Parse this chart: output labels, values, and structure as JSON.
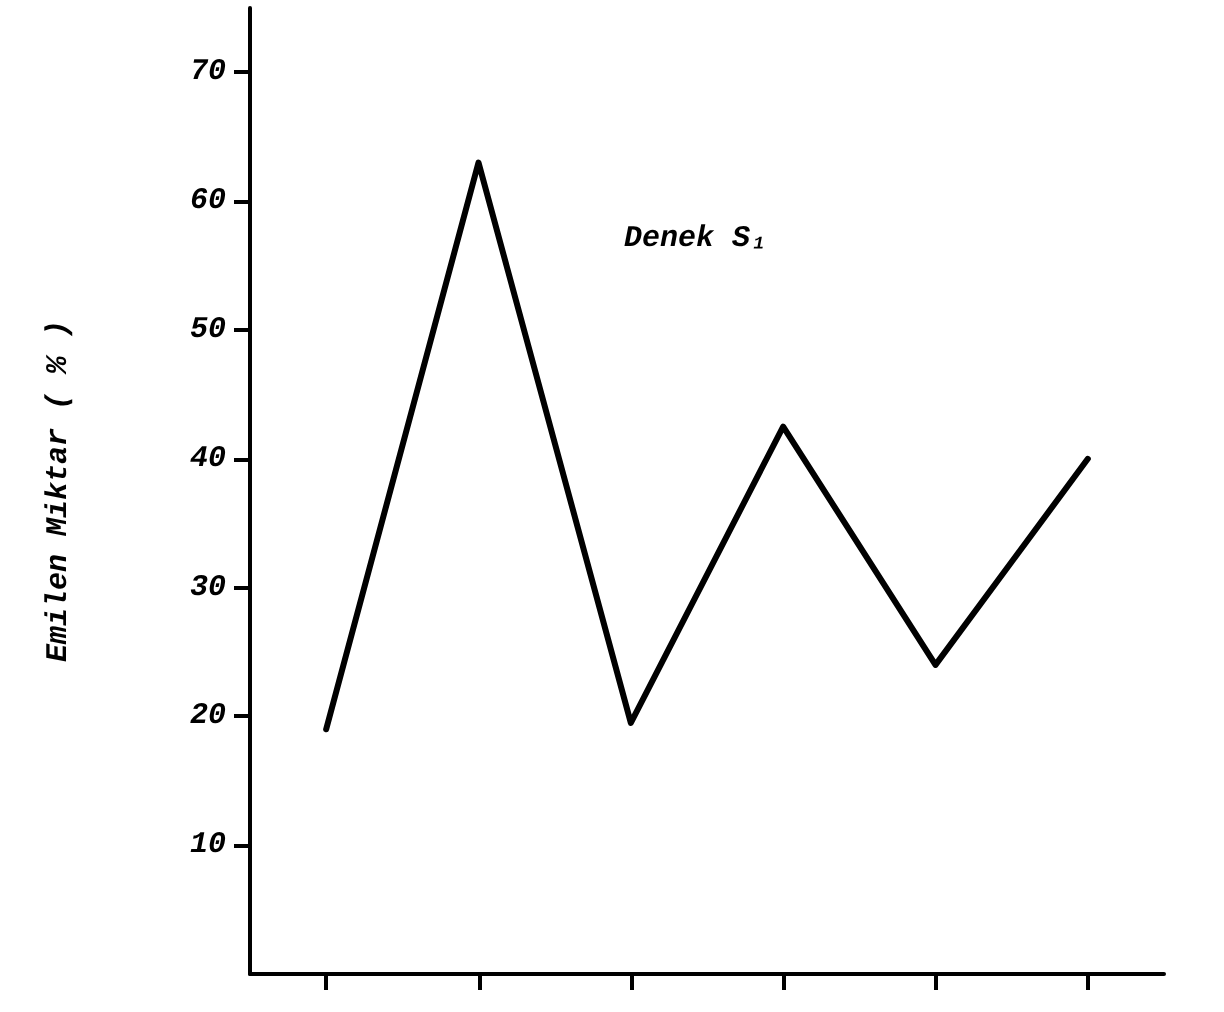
{
  "chart_data": {
    "type": "line",
    "ylabel": "Emilen Miktar ( % )",
    "categories": [
      null,
      null,
      null,
      null,
      null,
      null
    ],
    "values": [
      19,
      63,
      19.5,
      42.5,
      24,
      40
    ],
    "color": "#000000",
    "ylim": [
      0,
      75
    ],
    "yticks": [
      10,
      20,
      30,
      40,
      50,
      60,
      70
    ],
    "grid": false,
    "marker": "none",
    "line_style": "solid",
    "annotations": [
      "Denek S₁"
    ]
  }
}
